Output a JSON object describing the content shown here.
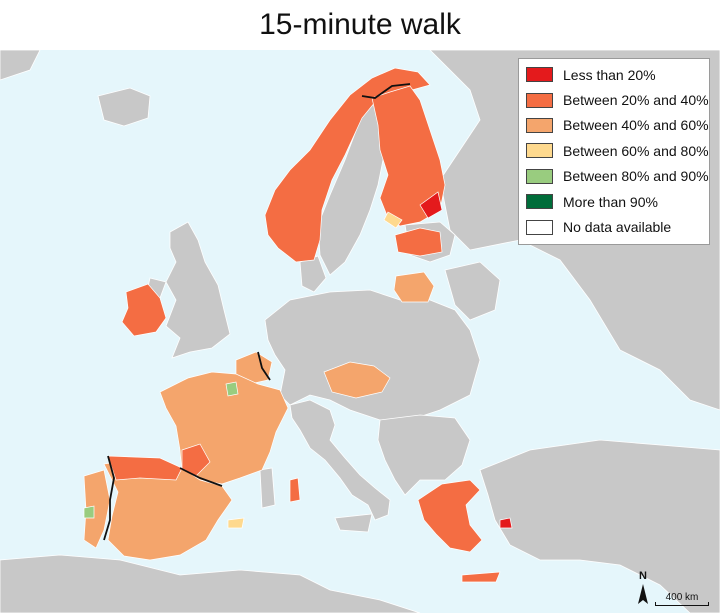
{
  "title": "15-minute walk",
  "colors": {
    "sea": "#e5f6fb",
    "land": "#c8c8c8",
    "border": "#ffffff",
    "outline": "#111111"
  },
  "legend": {
    "items": [
      {
        "label": "Less than 20%",
        "color": "#e41a1c"
      },
      {
        "label": "Between 20% and 40%",
        "color": "#f46d43"
      },
      {
        "label": "Between 40% and 60%",
        "color": "#f4a56c"
      },
      {
        "label": "Between 60% and 80%",
        "color": "#fed98e"
      },
      {
        "label": "Between 80% and 90%",
        "color": "#99cc7f"
      },
      {
        "label": "More than 90%",
        "color": "#006d3a"
      },
      {
        "label": "No data available",
        "color": "#ffffff"
      }
    ]
  },
  "scale": {
    "label": "400 km"
  },
  "north": {
    "label": "N"
  },
  "regions": [
    {
      "name": "Norway",
      "class": "Between 20% and 40%"
    },
    {
      "name": "Finland",
      "class": "Between 20% and 40%"
    },
    {
      "name": "Latvia",
      "class": "Between 20% and 40%"
    },
    {
      "name": "Lithuania",
      "class": "Between 40% and 60%"
    },
    {
      "name": "Ireland",
      "class": "Between 20% and 40%"
    },
    {
      "name": "Belgium",
      "class": "Between 40% and 60%"
    },
    {
      "name": "Czechia",
      "class": "Between 40% and 60%"
    },
    {
      "name": "France",
      "class": "Between 40% and 60%"
    },
    {
      "name": "Spain",
      "class": "Between 40% and 60%"
    },
    {
      "name": "Portugal",
      "class": "Between 40% and 60%"
    },
    {
      "name": "Greece",
      "class": "Between 20% and 40%"
    }
  ]
}
